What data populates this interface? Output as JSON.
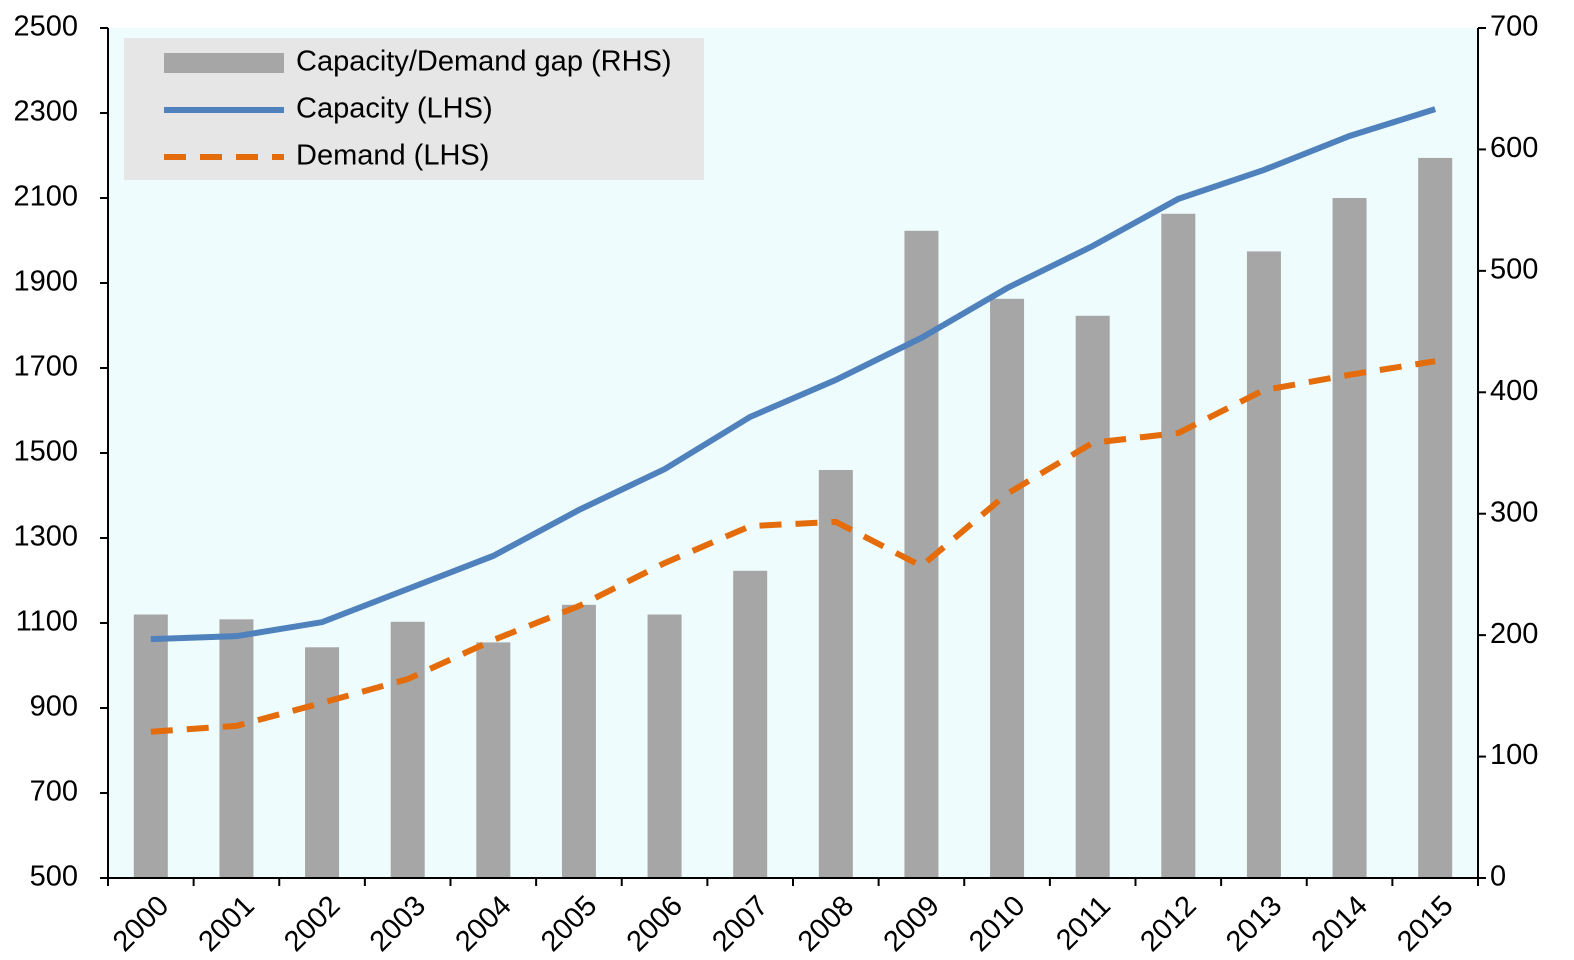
{
  "chart_data": {
    "type": "bar_line",
    "categories": [
      "2000",
      "2001",
      "2002",
      "2003",
      "2004",
      "2005",
      "2006",
      "2007",
      "2008",
      "2009",
      "2010",
      "2011",
      "2012",
      "2013",
      "2014",
      "2015"
    ],
    "series": [
      {
        "name": "Capacity/Demand gap (RHS)",
        "type": "bar",
        "axis": "y2",
        "color": "#a6a6a6",
        "values": [
          217,
          213,
          190,
          211,
          194,
          225,
          217,
          253,
          336,
          533,
          477,
          463,
          547,
          516,
          560,
          593
        ]
      },
      {
        "name": "Capacity (LHS)",
        "type": "line",
        "color": "#4f81bd",
        "values": [
          1062,
          1069,
          1102,
          1180,
          1258,
          1366,
          1462,
          1585,
          1672,
          1771,
          1888,
          1987,
          2098,
          2166,
          2246,
          2309
        ]
      },
      {
        "name": "Demand (LHS)",
        "type": "line",
        "dashed": true,
        "color": "#e46c0a",
        "values": [
          844,
          858,
          912,
          968,
          1060,
          1140,
          1241,
          1328,
          1338,
          1234,
          1404,
          1524,
          1547,
          1648,
          1684,
          1716
        ]
      }
    ],
    "ylim": [
      500,
      2500
    ],
    "yticks": [
      500,
      700,
      900,
      1100,
      1300,
      1500,
      1700,
      1900,
      2100,
      2300,
      2500
    ],
    "y2lim": [
      0,
      700
    ],
    "y2ticks": [
      0,
      100,
      200,
      300,
      400,
      500,
      600,
      700
    ],
    "legend": "upper left",
    "grid": false
  }
}
